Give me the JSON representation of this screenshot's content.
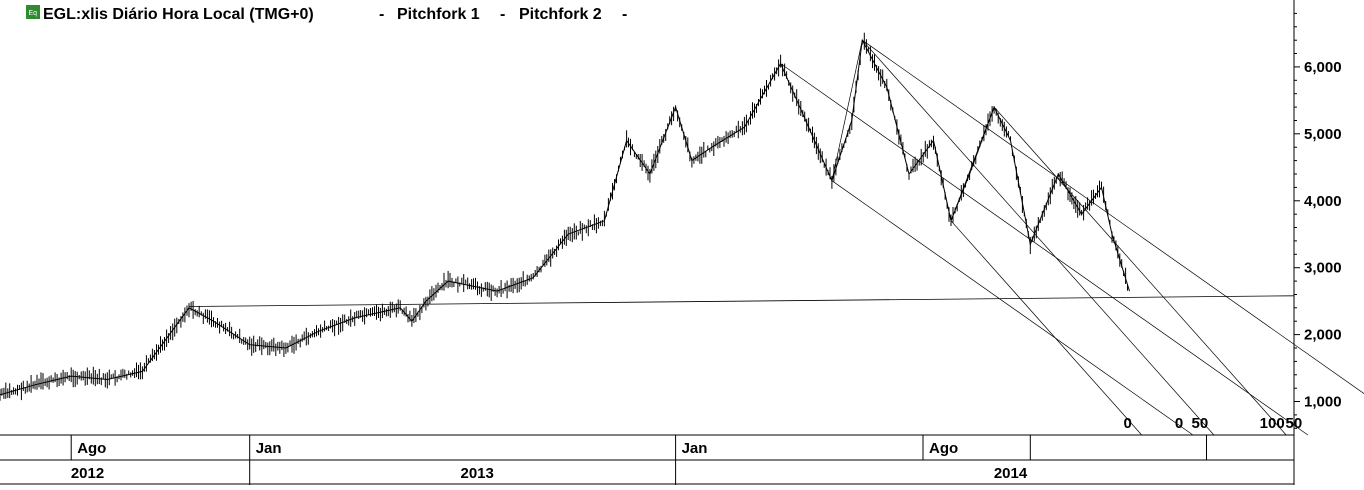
{
  "header": {
    "badge": "Eq",
    "title": "EGL:xlis Diário Hora Local (TMG+0)",
    "tools": [
      "Pitchfork 1",
      "Pitchfork 2"
    ]
  },
  "colors": {
    "price": "#000000",
    "grid": "#000000",
    "badge_bg": "#2e8b2e",
    "background": "#ffffff"
  },
  "chart_data": {
    "type": "line",
    "title": "EGL:xlis Diário Hora Local (TMG+0)",
    "xlabel": "",
    "ylabel": "",
    "x_range": [
      "2012-06-01",
      "2015-06-15"
    ],
    "ylim": [
      500,
      7000
    ],
    "y_axis_position": "right",
    "y_ticks": [
      1000,
      2000,
      3000,
      4000,
      5000,
      6000
    ],
    "y_tick_labels": [
      "1,000",
      "2,000",
      "3,000",
      "4,000",
      "5,000",
      "6,000"
    ],
    "x_month_labels": [
      {
        "date": "2012-08-01",
        "label": "Ago"
      },
      {
        "date": "2013-01-01",
        "label": "Jan"
      },
      {
        "date": "2014-01-01",
        "label": "Jan"
      },
      {
        "date": "2014-08-01",
        "label": "Ago"
      }
    ],
    "x_year_labels": [
      {
        "date": "2012-08-15",
        "label": "2012"
      },
      {
        "date": "2013-07-15",
        "label": "2013"
      },
      {
        "date": "2014-10-15",
        "label": "2014"
      }
    ],
    "series": [
      {
        "points": [
          [
            "2012-06-01",
            1100
          ],
          [
            "2012-07-01",
            1250
          ],
          [
            "2012-08-01",
            1380
          ],
          [
            "2012-09-01",
            1330
          ],
          [
            "2012-10-01",
            1450
          ],
          [
            "2012-10-20",
            1900
          ],
          [
            "2012-11-10",
            2400
          ],
          [
            "2012-12-01",
            2200
          ],
          [
            "2013-01-01",
            1850
          ],
          [
            "2013-02-01",
            1800
          ],
          [
            "2013-03-01",
            2050
          ],
          [
            "2013-04-01",
            2250
          ],
          [
            "2013-05-10",
            2400
          ],
          [
            "2013-05-20",
            2200
          ],
          [
            "2013-06-01",
            2500
          ],
          [
            "2013-06-20",
            2800
          ],
          [
            "2013-08-01",
            2650
          ],
          [
            "2013-09-01",
            2850
          ],
          [
            "2013-10-01",
            3500
          ],
          [
            "2013-11-01",
            3700
          ],
          [
            "2013-11-20",
            4900
          ],
          [
            "2013-12-10",
            4400
          ],
          [
            "2014-01-01",
            5400
          ],
          [
            "2014-01-15",
            4600
          ],
          [
            "2014-02-01",
            4800
          ],
          [
            "2014-03-01",
            5100
          ],
          [
            "2014-04-01",
            6050
          ],
          [
            "2014-04-20",
            5300
          ],
          [
            "2014-05-15",
            4300
          ],
          [
            "2014-06-01",
            5200
          ],
          [
            "2014-06-10",
            6400
          ],
          [
            "2014-07-01",
            5700
          ],
          [
            "2014-07-20",
            4400
          ],
          [
            "2014-08-10",
            4900
          ],
          [
            "2014-08-25",
            3700
          ],
          [
            "2014-09-10",
            4400
          ],
          [
            "2014-10-01",
            5400
          ],
          [
            "2014-10-15",
            4900
          ],
          [
            "2014-11-01",
            3350
          ],
          [
            "2014-11-25",
            4400
          ],
          [
            "2014-12-15",
            3800
          ],
          [
            "2015-01-01",
            4200
          ],
          [
            "2015-01-10",
            3500
          ],
          [
            "2015-01-25",
            2650
          ]
        ]
      }
    ],
    "horizontal_trendline": {
      "from": [
        "2012-11-10",
        2420
      ],
      "to": [
        "2015-06-15",
        2580
      ]
    },
    "pitchforks": [
      {
        "name": "Pitchfork 1",
        "pivot": [
          "2014-04-01",
          6050
        ],
        "anchors": [
          [
            "2014-05-15",
            4300
          ],
          [
            "2014-06-10",
            6400
          ]
        ],
        "level_labels": [
          "0",
          "50",
          "100"
        ]
      },
      {
        "name": "Pitchfork 2",
        "pivot": [
          "2014-06-10",
          6400
        ],
        "anchors": [
          [
            "2014-08-25",
            3700
          ],
          [
            "2014-10-01",
            5400
          ]
        ],
        "level_labels": [
          "0",
          "50",
          "100"
        ]
      }
    ]
  }
}
